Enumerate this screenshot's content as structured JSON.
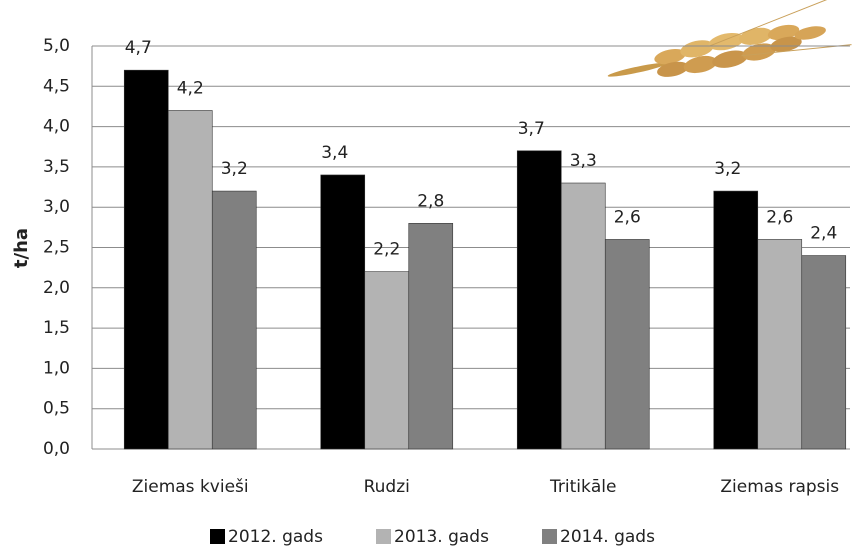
{
  "chart_data": {
    "type": "bar",
    "y_label": "t/ha",
    "categories": [
      "Ziemas kvieši",
      "Rudzi",
      "Tritikāle",
      "Ziemas rapsis"
    ],
    "series": [
      {
        "name": "2012. gads",
        "color": "#000000",
        "values": [
          4.7,
          3.4,
          3.7,
          3.2
        ],
        "value_labels": [
          "4,7",
          "3,4",
          "3,7",
          "3,2"
        ]
      },
      {
        "name": "2013. gads",
        "color": "#b3b3b3",
        "values": [
          4.2,
          2.2,
          3.3,
          2.6
        ],
        "value_labels": [
          "4,2",
          "2,2",
          "3,3",
          "2,6"
        ]
      },
      {
        "name": "2014. gads",
        "color": "#808080",
        "values": [
          3.2,
          2.8,
          2.6,
          2.4
        ],
        "value_labels": [
          "3,2",
          "2,8",
          "2,6",
          "2,4"
        ]
      }
    ],
    "ylim": [
      0,
      5
    ],
    "yticks": [
      {
        "value": 0,
        "label": "0,0"
      },
      {
        "value": 0.5,
        "label": "0,5"
      },
      {
        "value": 1,
        "label": "1,0"
      },
      {
        "value": 1.5,
        "label": "1,5"
      },
      {
        "value": 2,
        "label": "2,0"
      },
      {
        "value": 2.5,
        "label": "2,5"
      },
      {
        "value": 3,
        "label": "3,0"
      },
      {
        "value": 3.5,
        "label": "3,5"
      },
      {
        "value": 4,
        "label": "4,0"
      },
      {
        "value": 4.5,
        "label": "4,5"
      },
      {
        "value": 5,
        "label": "5,0"
      }
    ],
    "grid": true,
    "legend": "bottom"
  }
}
